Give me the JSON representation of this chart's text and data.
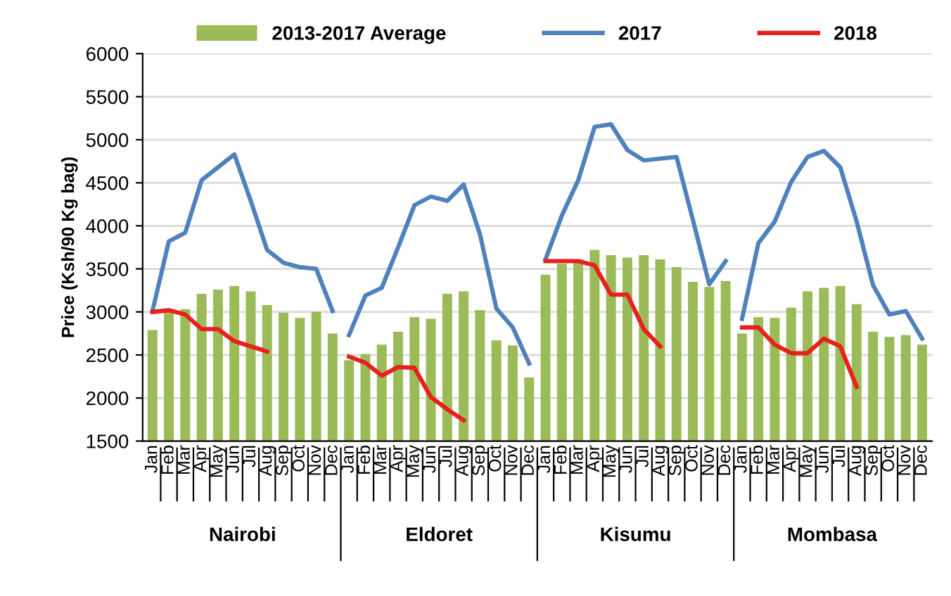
{
  "chart_data": {
    "type": "bar",
    "ylabel": "Price (Ksh/90 Kg bag)",
    "categories": [
      "Jan",
      "Feb",
      "Mar",
      "Apr",
      "May",
      "Jun",
      "Jul",
      "Aug",
      "Sep",
      "Oct",
      "Nov",
      "Dec",
      "Jan",
      "Feb",
      "Mar",
      "Apr",
      "May",
      "Jun",
      "Jul",
      "Aug",
      "Sep",
      "Oct",
      "Nov",
      "Dec",
      "Jan",
      "Feb",
      "Mar",
      "Apr",
      "May",
      "Jun",
      "Jul",
      "Aug",
      "Sep",
      "Oct",
      "Nov",
      "Dec",
      "Jan",
      "Feb",
      "Mar",
      "Apr",
      "May",
      "Jun",
      "Jul",
      "Aug",
      "Sep",
      "Oct",
      "Nov",
      "Dec"
    ],
    "annotations": [
      "Nairobi",
      "Eldoret",
      "Kisumu",
      "Mombasa"
    ],
    "series": [
      {
        "name": "2013-2017 Average",
        "type": "bar",
        "color": "#9bbb59",
        "values": [
          2790,
          2990,
          3030,
          3210,
          3260,
          3300,
          3240,
          3080,
          2990,
          2930,
          3000,
          2750,
          2440,
          2510,
          2620,
          2770,
          2940,
          2920,
          3210,
          3240,
          3020,
          2670,
          2610,
          2240,
          3430,
          3560,
          3610,
          3720,
          3660,
          3630,
          3660,
          3610,
          3520,
          3350,
          3290,
          3360,
          2750,
          2940,
          2930,
          3050,
          3240,
          3280,
          3300,
          3090,
          2770,
          2710,
          2730,
          2620
        ]
      },
      {
        "name": "2017",
        "type": "line",
        "color": "#4f81bd",
        "values": [
          3010,
          3820,
          3920,
          4530,
          4680,
          4830,
          4290,
          3720,
          3570,
          3520,
          3500,
          3010,
          null,
          null,
          null,
          null,
          null,
          null,
          null,
          null,
          null,
          null,
          null,
          null,
          null,
          null,
          null,
          null,
          null,
          null,
          null,
          null,
          null,
          null,
          null,
          null,
          null,
          null,
          null,
          null,
          null,
          null,
          null,
          null,
          null,
          null,
          null,
          null
        ]
      },
      {
        "type": "line",
        "color": "#4f81bd",
        "values": [
          null,
          null,
          null,
          null,
          null,
          null,
          null,
          null,
          null,
          null,
          null,
          null,
          2730,
          3190,
          3280,
          3750,
          4240,
          4340,
          4290,
          4480,
          3900,
          3040,
          2820,
          2400,
          null,
          null,
          null,
          null,
          null,
          null,
          null,
          null,
          null,
          null,
          null,
          null,
          null,
          null,
          null,
          null,
          null,
          null,
          null,
          null,
          null,
          null,
          null,
          null
        ]
      },
      {
        "type": "line",
        "color": "#4f81bd",
        "values": [
          null,
          null,
          null,
          null,
          null,
          null,
          null,
          null,
          null,
          null,
          null,
          null,
          null,
          null,
          null,
          null,
          null,
          null,
          null,
          null,
          null,
          null,
          null,
          null,
          3610,
          4120,
          4530,
          5150,
          5180,
          4880,
          4760,
          4780,
          4800,
          4070,
          3320,
          3590,
          null,
          null,
          null,
          null,
          null,
          null,
          null,
          null,
          null,
          null,
          null,
          null
        ]
      },
      {
        "type": "line",
        "color": "#4f81bd",
        "values": [
          null,
          null,
          null,
          null,
          null,
          null,
          null,
          null,
          null,
          null,
          null,
          null,
          null,
          null,
          null,
          null,
          null,
          null,
          null,
          null,
          null,
          null,
          null,
          null,
          null,
          null,
          null,
          null,
          null,
          null,
          null,
          null,
          null,
          null,
          null,
          null,
          2920,
          3800,
          4050,
          4510,
          4800,
          4870,
          4680,
          4050,
          3310,
          2970,
          3010,
          2690
        ]
      },
      {
        "name": "2018",
        "type": "line",
        "color": "#e8211c",
        "values": [
          3000,
          3020,
          2970,
          2800,
          2800,
          2660,
          2600,
          2540,
          null,
          null,
          null,
          null,
          null,
          null,
          null,
          null,
          null,
          null,
          null,
          null,
          null,
          null,
          null,
          null,
          null,
          null,
          null,
          null,
          null,
          null,
          null,
          null,
          null,
          null,
          null,
          null,
          null,
          null,
          null,
          null,
          null,
          null,
          null,
          null,
          null,
          null,
          null,
          null
        ]
      },
      {
        "type": "line",
        "color": "#e8211c",
        "values": [
          null,
          null,
          null,
          null,
          null,
          null,
          null,
          null,
          null,
          null,
          null,
          null,
          2480,
          2410,
          2260,
          2360,
          2350,
          2010,
          1870,
          1740,
          null,
          null,
          null,
          null,
          null,
          null,
          null,
          null,
          null,
          null,
          null,
          null,
          null,
          null,
          null,
          null,
          null,
          null,
          null,
          null,
          null,
          null,
          null,
          null,
          null,
          null,
          null,
          null
        ]
      },
      {
        "type": "line",
        "color": "#e8211c",
        "values": [
          null,
          null,
          null,
          null,
          null,
          null,
          null,
          null,
          null,
          null,
          null,
          null,
          null,
          null,
          null,
          null,
          null,
          null,
          null,
          null,
          null,
          null,
          null,
          null,
          3590,
          3590,
          3590,
          3540,
          3200,
          3200,
          2800,
          2600,
          null,
          null,
          null,
          null,
          null,
          null,
          null,
          null,
          null,
          null,
          null,
          null,
          null,
          null,
          null,
          null
        ]
      },
      {
        "type": "line",
        "color": "#e8211c",
        "values": [
          null,
          null,
          null,
          null,
          null,
          null,
          null,
          null,
          null,
          null,
          null,
          null,
          null,
          null,
          null,
          null,
          null,
          null,
          null,
          null,
          null,
          null,
          null,
          null,
          null,
          null,
          null,
          null,
          null,
          null,
          null,
          null,
          null,
          null,
          null,
          null,
          2820,
          2820,
          2620,
          2520,
          2520,
          2690,
          2600,
          2130,
          null,
          null,
          null,
          null
        ]
      }
    ],
    "ylim": [
      1500,
      6000
    ],
    "yticks": [
      1500,
      2000,
      2500,
      3000,
      3500,
      4000,
      4500,
      5000,
      5500,
      6000
    ],
    "grid": "y",
    "legend": "top",
    "line_style": "solid"
  }
}
